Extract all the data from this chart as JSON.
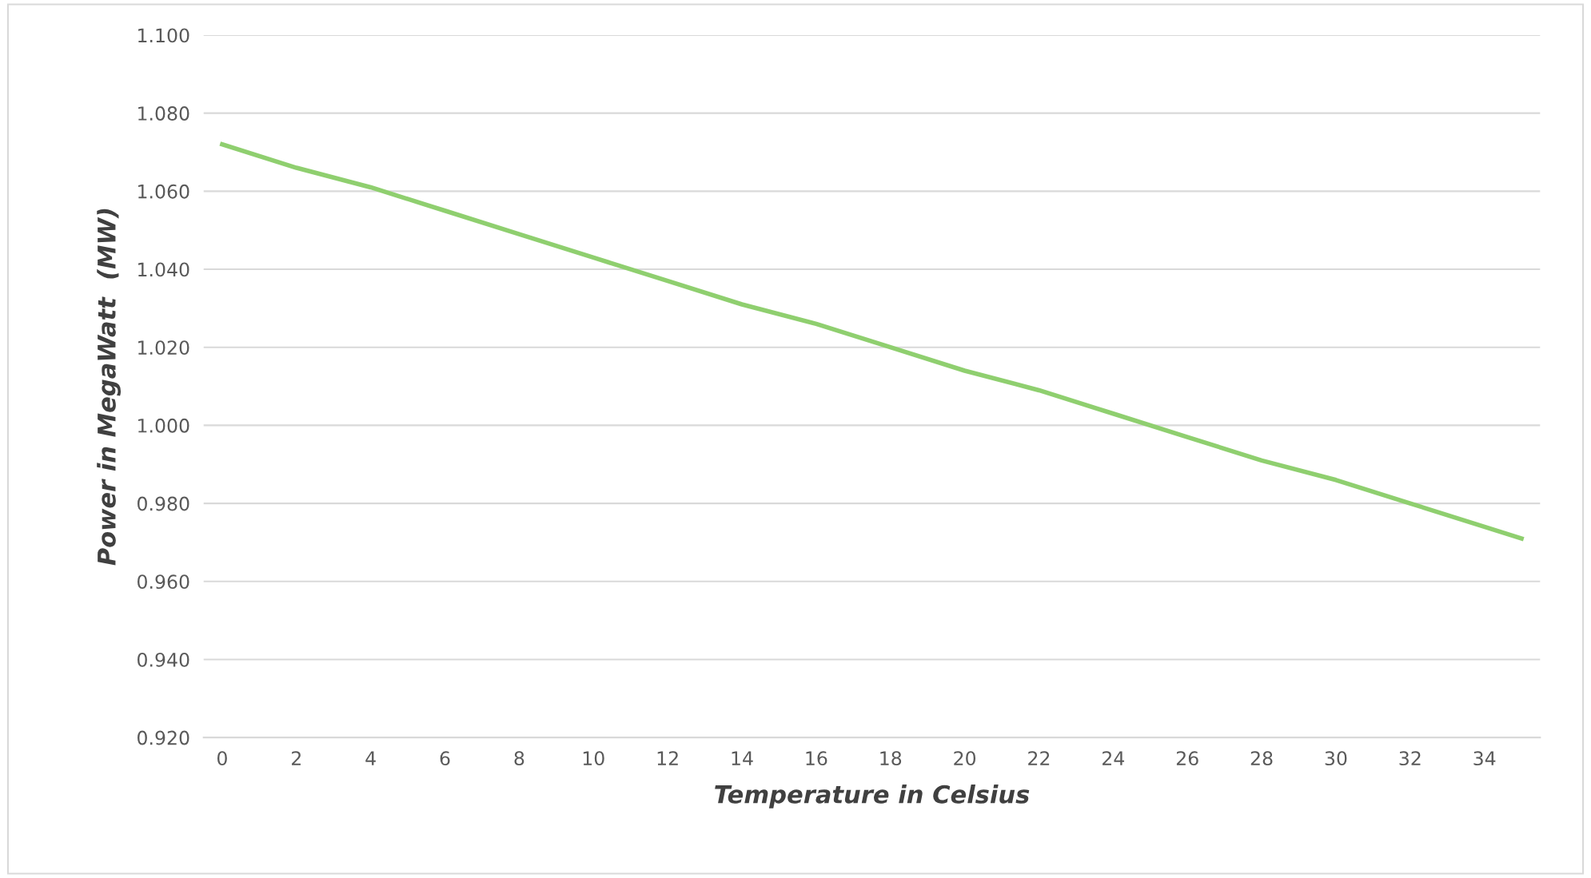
{
  "chart_data": {
    "type": "line",
    "xlabel": "Temperature in Celsius",
    "ylabel": "Power in MegaWatt  (MW)",
    "x": [
      0,
      2,
      4,
      6,
      8,
      10,
      12,
      14,
      16,
      18,
      20,
      22,
      24,
      26,
      28,
      30,
      32,
      34,
      35
    ],
    "series": [
      {
        "color": "#8fcf6f",
        "values": [
          1.072,
          1.066,
          1.061,
          1.055,
          1.049,
          1.043,
          1.037,
          1.031,
          1.026,
          1.02,
          1.014,
          1.009,
          1.003,
          0.997,
          0.991,
          0.986,
          0.98,
          0.974,
          0.971
        ]
      }
    ],
    "xlim": [
      -0.5,
      35.5
    ],
    "xticks": [
      0,
      2,
      4,
      6,
      8,
      10,
      12,
      14,
      16,
      18,
      20,
      22,
      24,
      26,
      28,
      30,
      32,
      34
    ],
    "ylim": [
      0.92,
      1.1
    ],
    "yticks": [
      {
        "value": 0.92,
        "label": "0.920"
      },
      {
        "value": 0.94,
        "label": "0.940"
      },
      {
        "value": 0.96,
        "label": "0.960"
      },
      {
        "value": 0.98,
        "label": "0.980"
      },
      {
        "value": 1.0,
        "label": "1.000"
      },
      {
        "value": 1.02,
        "label": "1.020"
      },
      {
        "value": 1.04,
        "label": "1.040"
      },
      {
        "value": 1.06,
        "label": "1.060"
      },
      {
        "value": 1.08,
        "label": "1.080"
      },
      {
        "value": 1.1,
        "label": "1.100"
      }
    ],
    "grid": "y",
    "marker": "none",
    "line_style": "solid"
  }
}
